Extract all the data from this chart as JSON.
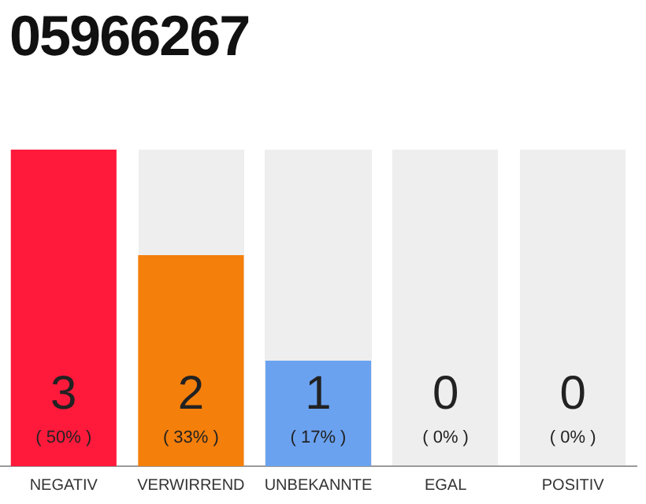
{
  "chart_data": {
    "type": "bar",
    "title": "05966267",
    "categories": [
      "NEGATIV",
      "VERWIRREND",
      "UNBEKANNTE",
      "EGAL",
      "POSITIV"
    ],
    "values": [
      3,
      2,
      1,
      0,
      0
    ],
    "colors": [
      "#ff1a3c",
      "#f47f0b",
      "#6aa2f0",
      "#eeeeee",
      "#eeeeee"
    ],
    "value_labels": [
      "3\n( 50% )",
      "2\n( 33% )",
      "1\n( 17% )",
      "0\n( 0% )",
      "0\n( 0% )"
    ],
    "tick_labels": "x",
    "grid": false,
    "legend": false
  }
}
